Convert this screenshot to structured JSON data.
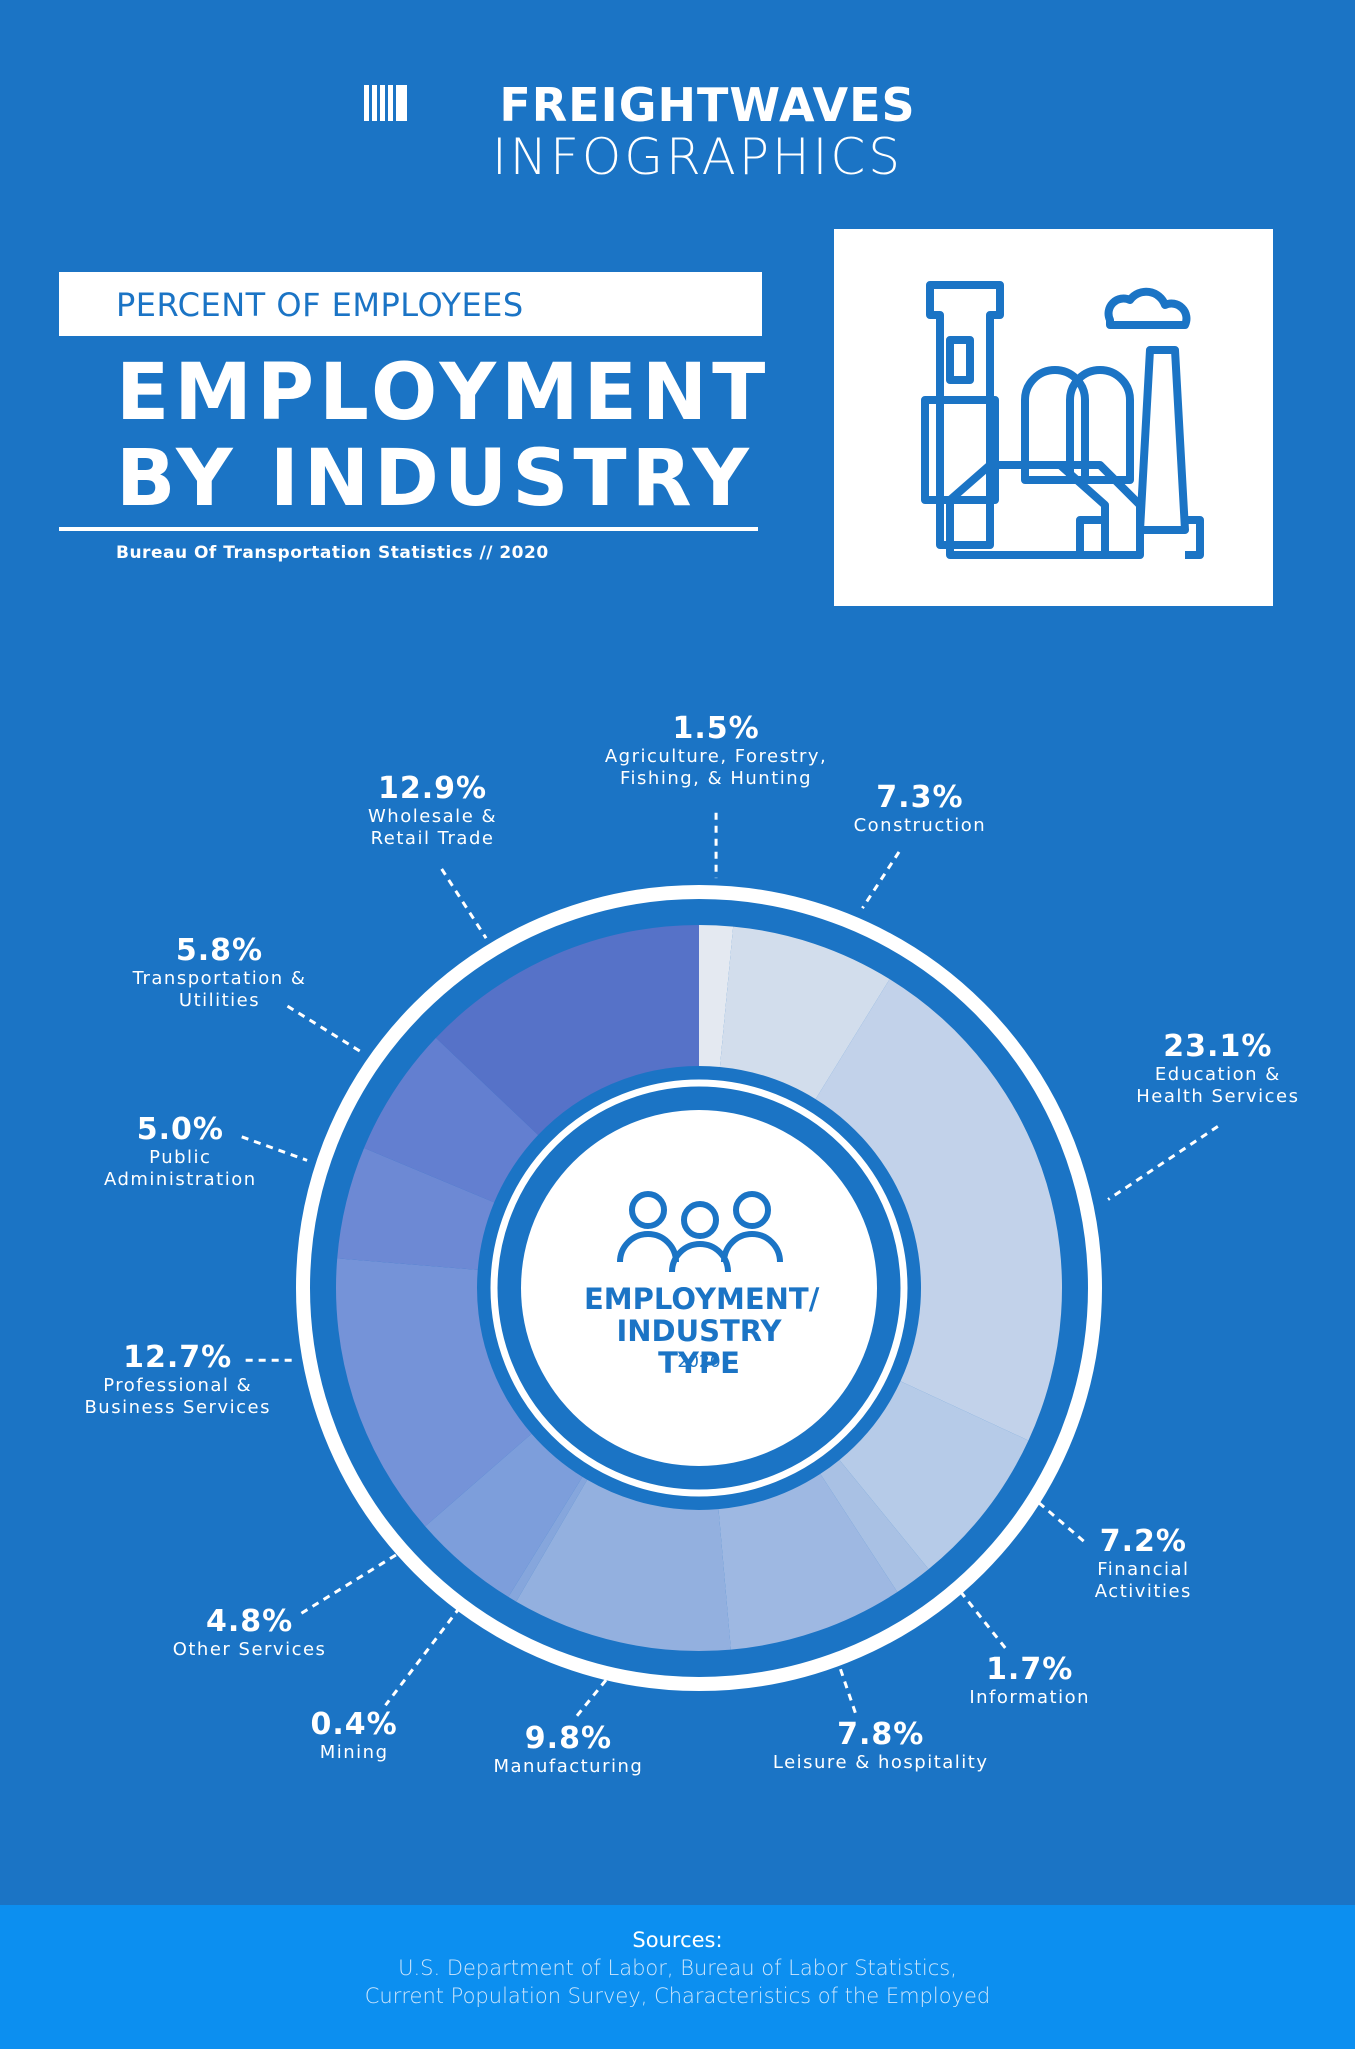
{
  "logo": {
    "brand": "FREIGHTWAVES",
    "product": "INFOGRAPHICS"
  },
  "header": {
    "subtitle": "PERCENT OF EMPLOYEES",
    "title": [
      "EMPLOYMENT",
      "BY INDUSTRY"
    ],
    "source": "Bureau Of Transportation Statistics // 2020"
  },
  "chart_data": {
    "type": "pie",
    "center_label": "EMPLOYMENT/ INDUSTRY TYPE",
    "center_year": "2020",
    "categories": [
      "Agriculture, Forestry, Fishing, & Hunting",
      "Construction",
      "Education & Health Services",
      "Financial Activities",
      "Information",
      "Leisure & hospitality",
      "Manufacturing",
      "Mining",
      "Other Services",
      "Professional & Business Services",
      "Public Administration",
      "Transportation & Utilities",
      "Wholesale & Retail Trade"
    ],
    "values": [
      1.5,
      7.3,
      23.1,
      7.2,
      1.7,
      7.8,
      9.8,
      0.4,
      4.8,
      12.7,
      5.0,
      5.8,
      12.9
    ],
    "value_labels": [
      "1.5%",
      "7.3%",
      "23.1%",
      "7.2%",
      "1.7%",
      "7.8%",
      "9.8%",
      "0.4%",
      "4.8%",
      "12.7%",
      "5.0%",
      "5.8%",
      "12.9%"
    ],
    "colors": [
      "#e4e9f1",
      "#d2ddec",
      "#c2d2ea",
      "#b6cbe8",
      "#a9c1e4",
      "#9eb8e2",
      "#93b0df",
      "#86a6dc",
      "#7d9edb",
      "#7593d8",
      "#6d89d4",
      "#637fd0",
      "#5672c8"
    ]
  },
  "sources": {
    "heading": "Sources:",
    "lines": [
      "U.S. Department of Labor, Bureau of Labor Statistics,",
      "Current Population Survey, Characteristics of the Employed"
    ]
  }
}
